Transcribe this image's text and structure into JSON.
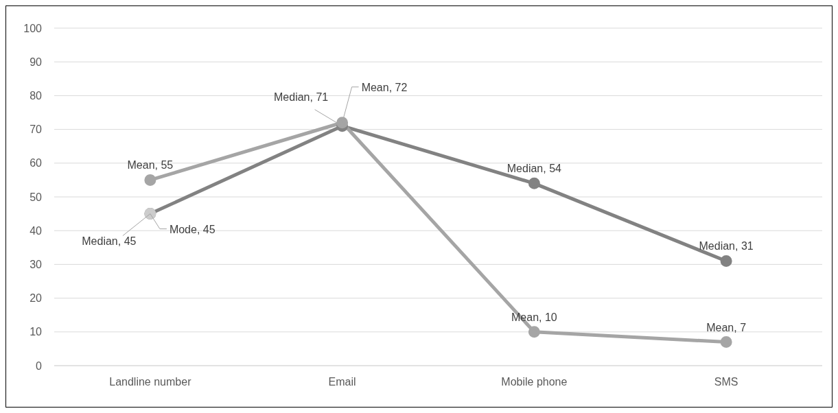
{
  "chart_data": {
    "type": "line",
    "categories": [
      "Landline number",
      "Email",
      "Mobile phone",
      "SMS"
    ],
    "series": [
      {
        "color": "#828282",
        "values": [
          45,
          71,
          54,
          31
        ],
        "value_labels": [
          "Median, 45",
          "Median, 71",
          "Median, 54",
          "Median, 31"
        ]
      },
      {
        "color": "#a5a5a5",
        "values": [
          55,
          72,
          10,
          7
        ],
        "value_labels": [
          "Mean, 55",
          "Mean, 72",
          "Mean, 10",
          "Mean, 7"
        ]
      },
      {
        "color": "#cccccc",
        "values": [
          45,
          null,
          null,
          null
        ],
        "value_labels": [
          "Mode, 45",
          null,
          null,
          null
        ]
      }
    ],
    "ylim": [
      0,
      100
    ],
    "yticks": [
      0,
      10,
      20,
      30,
      40,
      50,
      60,
      70,
      80,
      90,
      100
    ],
    "grid": "y",
    "marker": "circle",
    "line_style": "solid"
  }
}
